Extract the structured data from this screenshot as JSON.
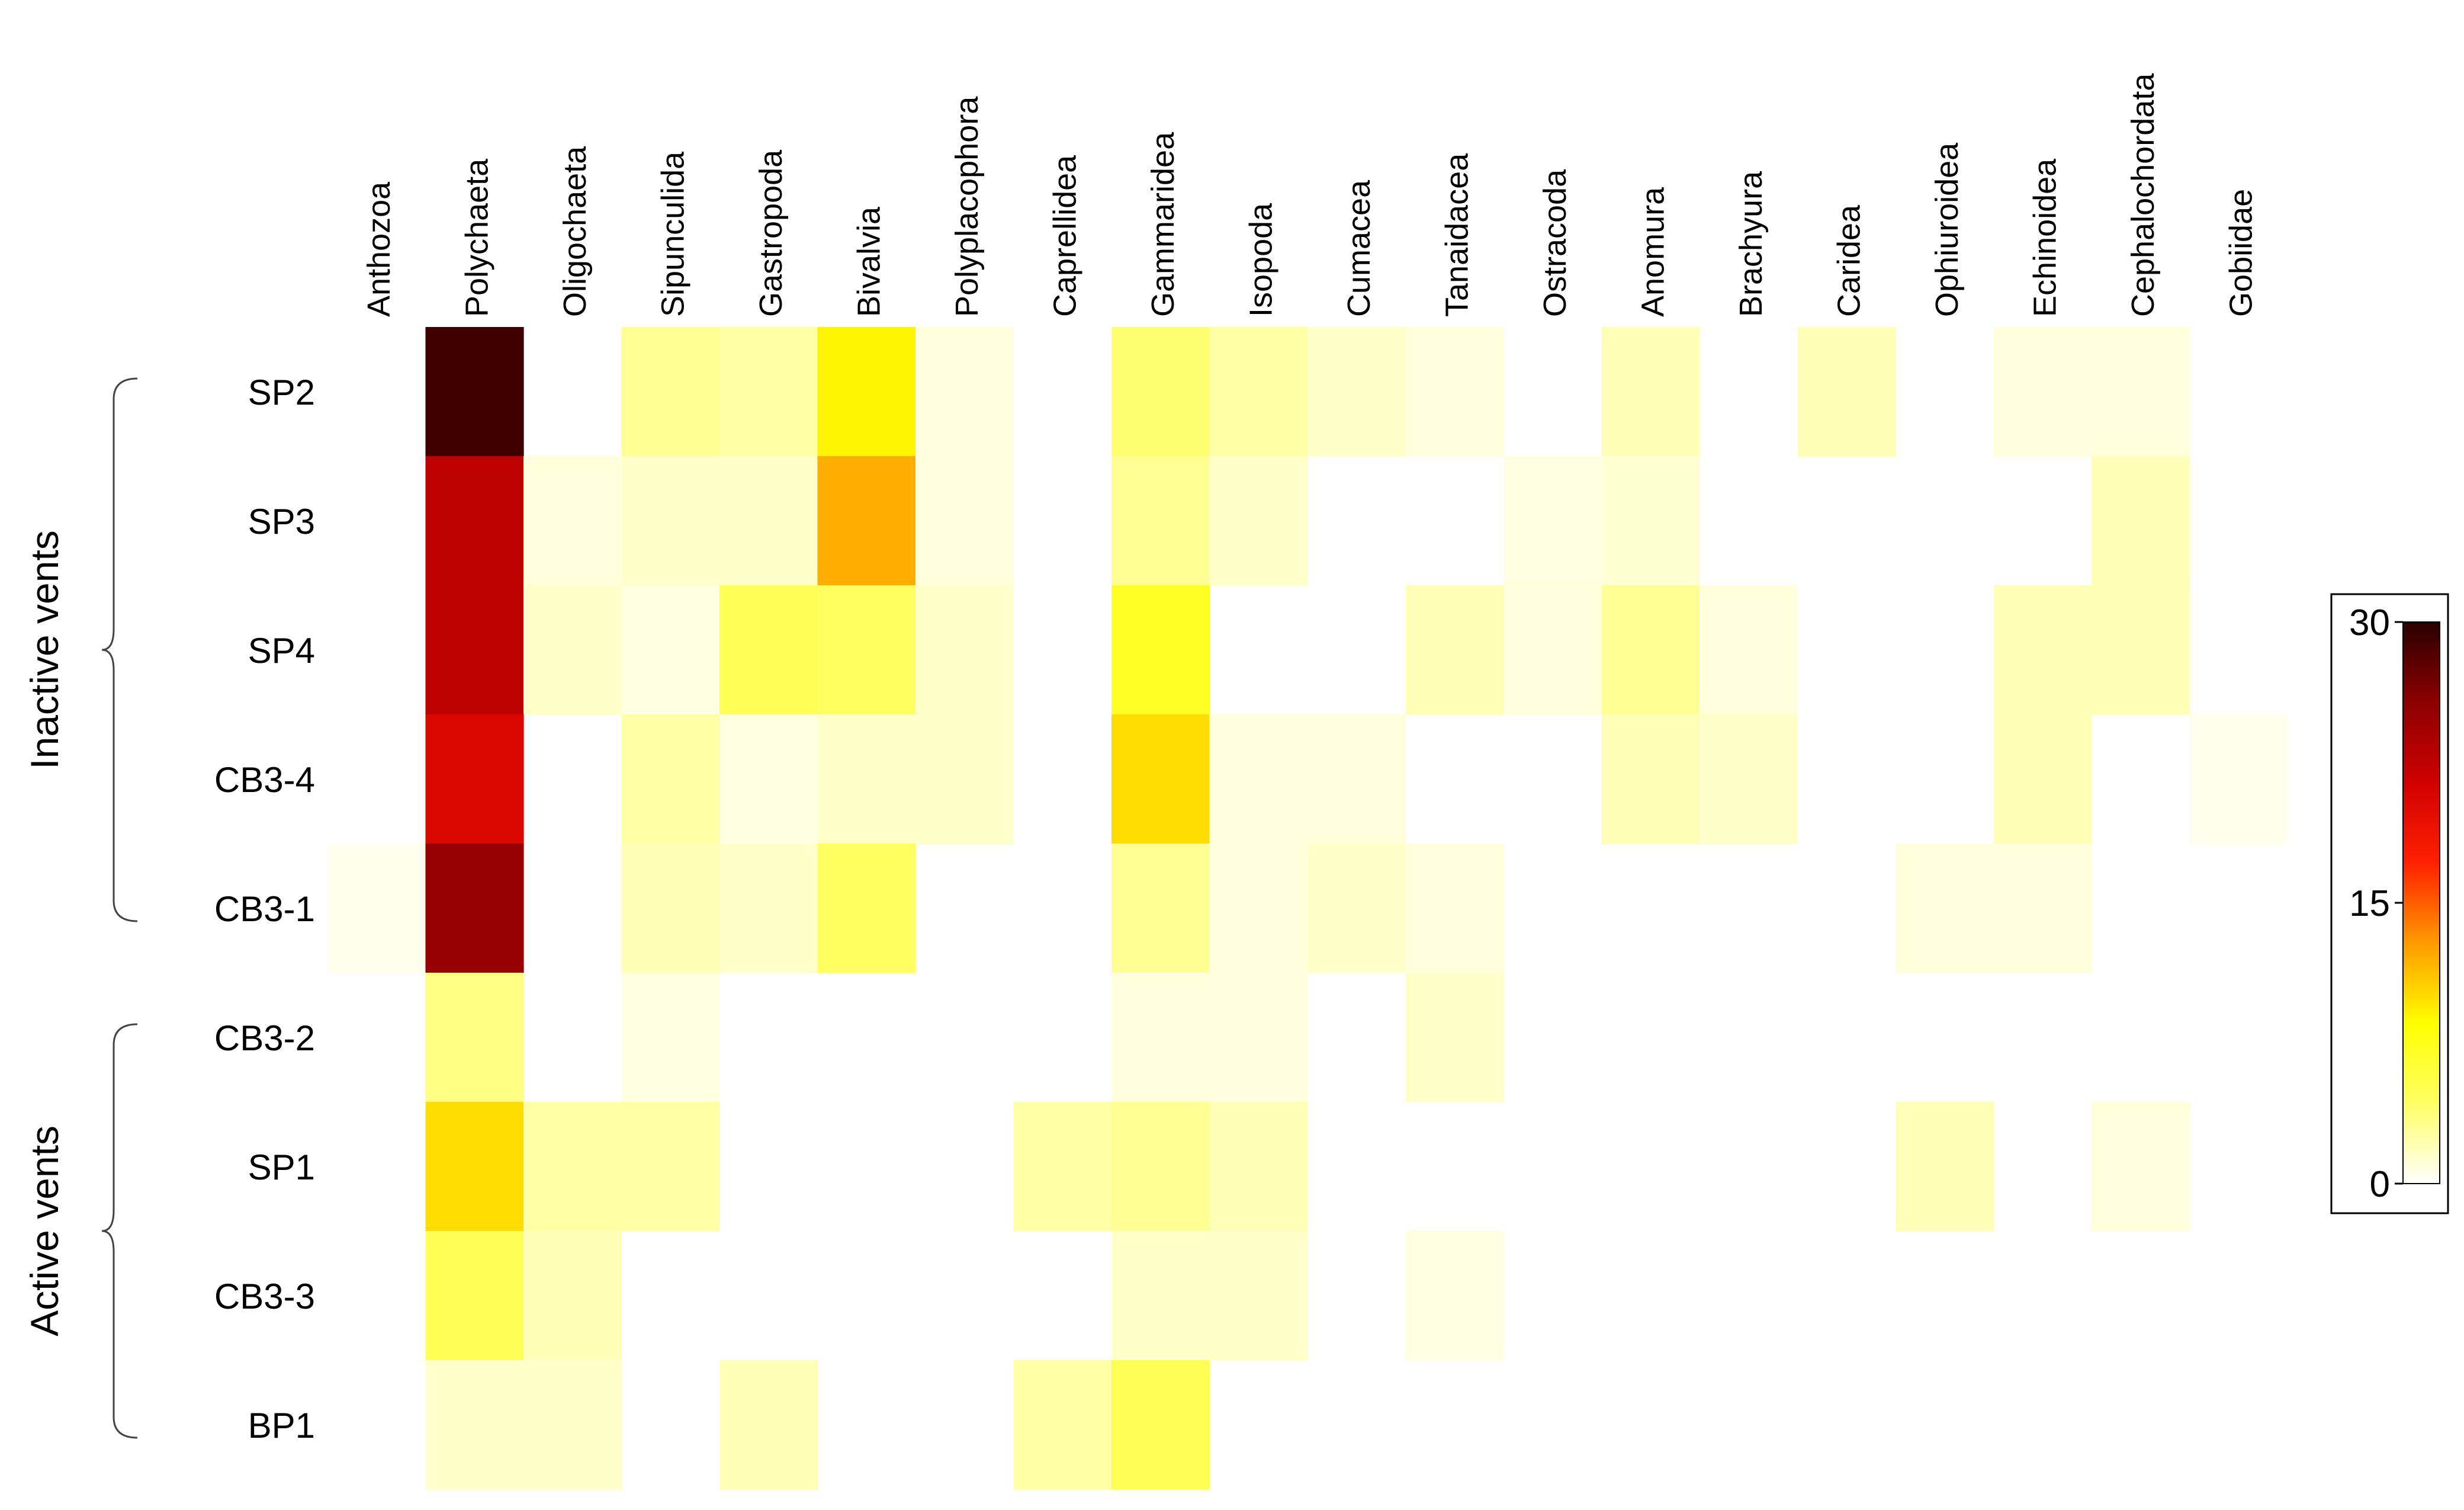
{
  "chart_data": {
    "type": "heatmap",
    "title": "",
    "xlabel": "",
    "ylabel": "",
    "columns": [
      "Anthozoa",
      "Polychaeta",
      "Oligochaeta",
      "Sipunculida",
      "Gastropoda",
      "Bivalvia",
      "Polyplacophora",
      "Caprellidea",
      "Gammaridea",
      "Isopoda",
      "Cumacea",
      "Tanaidacea",
      "Ostracoda",
      "Anomura",
      "Brachyura",
      "Caridea",
      "Ophiuroidea",
      "Echinoidea",
      "Cephalochordata",
      "Gobiidae"
    ],
    "rows": [
      "SP2",
      "SP3",
      "SP4",
      "CB3-4",
      "CB3-1",
      "CB3-2",
      "SP1",
      "CB3-3",
      "BP1"
    ],
    "groups": [
      {
        "label": "Inactive vents",
        "rows": [
          "SP2",
          "SP3",
          "SP4",
          "CB3-4",
          "CB3-1"
        ]
      },
      {
        "label": "Active vents",
        "rows": [
          "CB3-2",
          "SP1",
          "CB3-3",
          "BP1"
        ]
      }
    ],
    "values": [
      [
        null,
        29,
        null,
        3,
        2.5,
        9,
        1,
        null,
        4,
        2.5,
        1.5,
        1,
        null,
        2,
        null,
        2,
        null,
        1,
        1,
        null
      ],
      [
        null,
        22.5,
        1,
        1.5,
        1.5,
        12,
        1,
        null,
        3,
        1.5,
        null,
        null,
        0.8,
        1.2,
        null,
        null,
        null,
        null,
        2,
        null
      ],
      [
        null,
        22.5,
        1.5,
        0.8,
        5,
        4.5,
        1.5,
        null,
        7,
        null,
        null,
        2,
        1,
        3,
        1,
        null,
        null,
        2,
        2,
        null
      ],
      [
        null,
        20.5,
        null,
        2.5,
        0.8,
        1.5,
        1.5,
        null,
        10,
        1,
        1,
        null,
        null,
        2,
        1.5,
        null,
        null,
        2,
        null,
        0.5
      ],
      [
        0.5,
        25,
        null,
        2,
        1.5,
        4.5,
        null,
        null,
        3,
        1,
        1.5,
        1,
        null,
        null,
        null,
        null,
        1,
        1,
        null,
        null
      ],
      [
        null,
        3.5,
        null,
        0.8,
        null,
        null,
        null,
        null,
        1,
        1,
        null,
        1.5,
        null,
        null,
        null,
        null,
        null,
        null,
        null,
        null
      ],
      [
        null,
        10,
        2.5,
        2.5,
        null,
        null,
        null,
        2.5,
        3,
        2,
        null,
        null,
        null,
        null,
        null,
        null,
        2,
        null,
        1,
        null
      ],
      [
        null,
        5,
        2,
        null,
        null,
        null,
        null,
        null,
        1.5,
        1.5,
        null,
        0.8,
        null,
        null,
        null,
        null,
        null,
        null,
        null,
        null
      ],
      [
        null,
        1.5,
        1.5,
        null,
        2,
        null,
        null,
        2.5,
        5,
        null,
        null,
        null,
        null,
        null,
        null,
        null,
        null,
        null,
        null,
        null
      ]
    ],
    "colorbar": {
      "min": 0,
      "max": 30,
      "ticks": [
        0,
        15,
        30
      ]
    },
    "colormap_stops": [
      "#ffffff",
      "#ffff66",
      "#ffff00",
      "#ff9a00",
      "#ff2000",
      "#d00000",
      "#8c0000",
      "#2a0000"
    ]
  }
}
